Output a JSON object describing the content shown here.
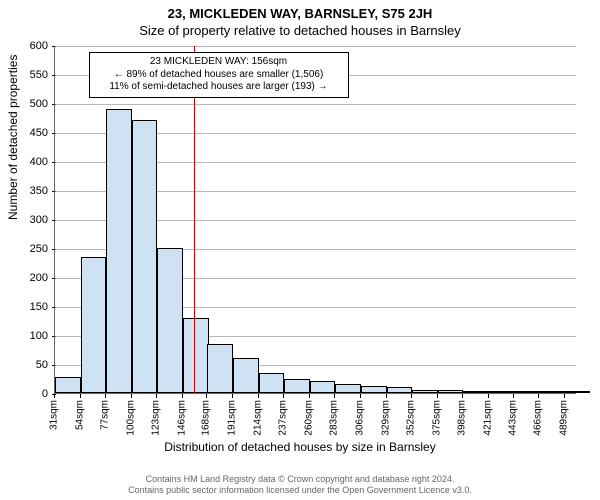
{
  "title": "23, MICKLEDEN WAY, BARNSLEY, S75 2JH",
  "subtitle": "Size of property relative to detached houses in Barnsley",
  "ylabel": "Number of detached properties",
  "xlabel": "Distribution of detached houses by size in Barnsley",
  "chart": {
    "type": "histogram",
    "ylim": [
      0,
      600
    ],
    "ytick_step": 50,
    "xlim": [
      31,
      500
    ],
    "xtick_labels": [
      "31sqm",
      "54sqm",
      "77sqm",
      "100sqm",
      "123sqm",
      "146sqm",
      "168sqm",
      "191sqm",
      "214sqm",
      "237sqm",
      "260sqm",
      "283sqm",
      "306sqm",
      "329sqm",
      "352sqm",
      "375sqm",
      "398sqm",
      "421sqm",
      "443sqm",
      "466sqm",
      "489sqm"
    ],
    "xtick_positions": [
      31,
      54,
      77,
      100,
      123,
      146,
      168,
      191,
      214,
      237,
      260,
      283,
      306,
      329,
      352,
      375,
      398,
      421,
      443,
      466,
      489
    ],
    "bin_width": 23,
    "bars": [
      {
        "x": 31,
        "y": 28
      },
      {
        "x": 54,
        "y": 235
      },
      {
        "x": 77,
        "y": 490
      },
      {
        "x": 100,
        "y": 470
      },
      {
        "x": 123,
        "y": 250
      },
      {
        "x": 146,
        "y": 130
      },
      {
        "x": 168,
        "y": 85
      },
      {
        "x": 191,
        "y": 60
      },
      {
        "x": 214,
        "y": 35
      },
      {
        "x": 237,
        "y": 25
      },
      {
        "x": 260,
        "y": 20
      },
      {
        "x": 283,
        "y": 15
      },
      {
        "x": 306,
        "y": 12
      },
      {
        "x": 329,
        "y": 10
      },
      {
        "x": 352,
        "y": 6
      },
      {
        "x": 375,
        "y": 5
      },
      {
        "x": 398,
        "y": 3
      },
      {
        "x": 421,
        "y": 2
      },
      {
        "x": 443,
        "y": 2
      },
      {
        "x": 466,
        "y": 2
      },
      {
        "x": 489,
        "y": 2
      }
    ],
    "bar_fill": "#cfe2f3",
    "bar_stroke": "#000000",
    "grid_color": "#888888",
    "background": "#ffffff",
    "reference_line": {
      "x": 156,
      "color": "#cc0000"
    },
    "ytick_fontsize": 11,
    "xtick_fontsize": 10,
    "label_fontsize": 12
  },
  "annotation": {
    "line1": "23 MICKLEDEN WAY: 156sqm",
    "line2": "← 89% of detached houses are smaller (1,506)",
    "line3": "11% of semi-detached houses are larger (193) →"
  },
  "attribution": {
    "line1": "Contains HM Land Registry data © Crown copyright and database right 2024.",
    "line2": "Contains public sector information licensed under the Open Government Licence v3.0."
  }
}
